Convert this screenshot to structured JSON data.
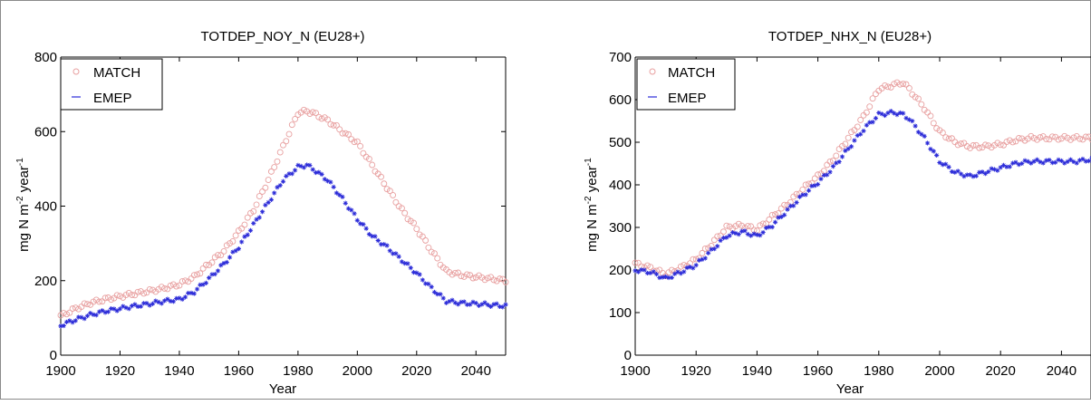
{
  "chart_data": [
    {
      "type": "scatter",
      "title": "TOTDEP_NOY_N (EU28+)",
      "xlabel": "Year",
      "ylabel": "mg N m-2 year-1",
      "xlim": [
        1900,
        2050
      ],
      "ylim": [
        0,
        800
      ],
      "xticks": [
        1900,
        1920,
        1940,
        1960,
        1980,
        2000,
        2020,
        2040
      ],
      "yticks": [
        0,
        200,
        400,
        600,
        800
      ],
      "legend_position": "top-left",
      "series": [
        {
          "name": "MATCH",
          "marker": "circle",
          "color": "#e8a0a0",
          "x": [
            1900,
            1905,
            1910,
            1915,
            1920,
            1925,
            1930,
            1935,
            1940,
            1945,
            1950,
            1955,
            1960,
            1965,
            1970,
            1975,
            1980,
            1983,
            1985,
            1990,
            1995,
            2000,
            2005,
            2010,
            2015,
            2020,
            2025,
            2030,
            2035,
            2040,
            2045,
            2050
          ],
          "values": [
            105,
            125,
            140,
            150,
            158,
            165,
            172,
            180,
            190,
            210,
            245,
            280,
            330,
            390,
            470,
            560,
            650,
            655,
            650,
            630,
            600,
            570,
            510,
            450,
            390,
            340,
            280,
            225,
            215,
            210,
            205,
            200
          ]
        },
        {
          "name": "EMEP",
          "marker": "star",
          "color": "#2a2ad8",
          "x": [
            1900,
            1905,
            1910,
            1915,
            1920,
            1925,
            1930,
            1935,
            1940,
            1945,
            1950,
            1955,
            1960,
            1965,
            1970,
            1975,
            1980,
            1983,
            1985,
            1990,
            1995,
            2000,
            2005,
            2010,
            2015,
            2020,
            2025,
            2030,
            2035,
            2040,
            2045,
            2050
          ],
          "values": [
            80,
            95,
            108,
            118,
            125,
            132,
            138,
            145,
            150,
            170,
            205,
            245,
            290,
            350,
            410,
            470,
            505,
            510,
            500,
            470,
            420,
            365,
            320,
            290,
            255,
            220,
            180,
            145,
            140,
            138,
            135,
            132
          ]
        }
      ]
    },
    {
      "type": "scatter",
      "title": "TOTDEP_NHX_N (EU28+)",
      "xlabel": "Year",
      "ylabel": "mg N m-2 year-1",
      "xlim": [
        1900,
        2050
      ],
      "ylim": [
        0,
        700
      ],
      "xticks": [
        1900,
        1920,
        1940,
        1960,
        1980,
        2000,
        2020,
        2040
      ],
      "yticks": [
        0,
        100,
        200,
        300,
        400,
        500,
        600,
        700
      ],
      "legend_position": "top-left",
      "series": [
        {
          "name": "MATCH",
          "marker": "circle",
          "color": "#e8a0a0",
          "x": [
            1900,
            1905,
            1910,
            1915,
            1920,
            1925,
            1930,
            1935,
            1940,
            1945,
            1950,
            1955,
            1960,
            1965,
            1970,
            1975,
            1980,
            1985,
            1988,
            1990,
            1995,
            2000,
            2005,
            2010,
            2015,
            2020,
            2025,
            2030,
            2035,
            2040,
            2045,
            2050
          ],
          "values": [
            215,
            205,
            190,
            205,
            225,
            260,
            300,
            305,
            295,
            325,
            355,
            390,
            420,
            460,
            510,
            560,
            625,
            635,
            640,
            625,
            580,
            525,
            500,
            490,
            490,
            495,
            505,
            510,
            510,
            510,
            510,
            510
          ]
        },
        {
          "name": "EMEP",
          "marker": "star",
          "color": "#2a2ad8",
          "x": [
            1900,
            1905,
            1910,
            1915,
            1920,
            1925,
            1930,
            1935,
            1940,
            1945,
            1950,
            1955,
            1960,
            1965,
            1970,
            1975,
            1980,
            1985,
            1988,
            1990,
            1995,
            2000,
            2005,
            2010,
            2015,
            2020,
            2025,
            2030,
            2035,
            2040,
            2045,
            2050
          ],
          "values": [
            200,
            195,
            180,
            195,
            212,
            245,
            280,
            290,
            280,
            305,
            340,
            375,
            405,
            440,
            485,
            530,
            565,
            570,
            565,
            555,
            510,
            455,
            430,
            420,
            430,
            440,
            450,
            455,
            455,
            455,
            455,
            460
          ]
        }
      ]
    }
  ],
  "ylabel_parts": {
    "main": "mg N m",
    "exp1": "-2",
    "mid": " year",
    "exp2": "-1"
  }
}
